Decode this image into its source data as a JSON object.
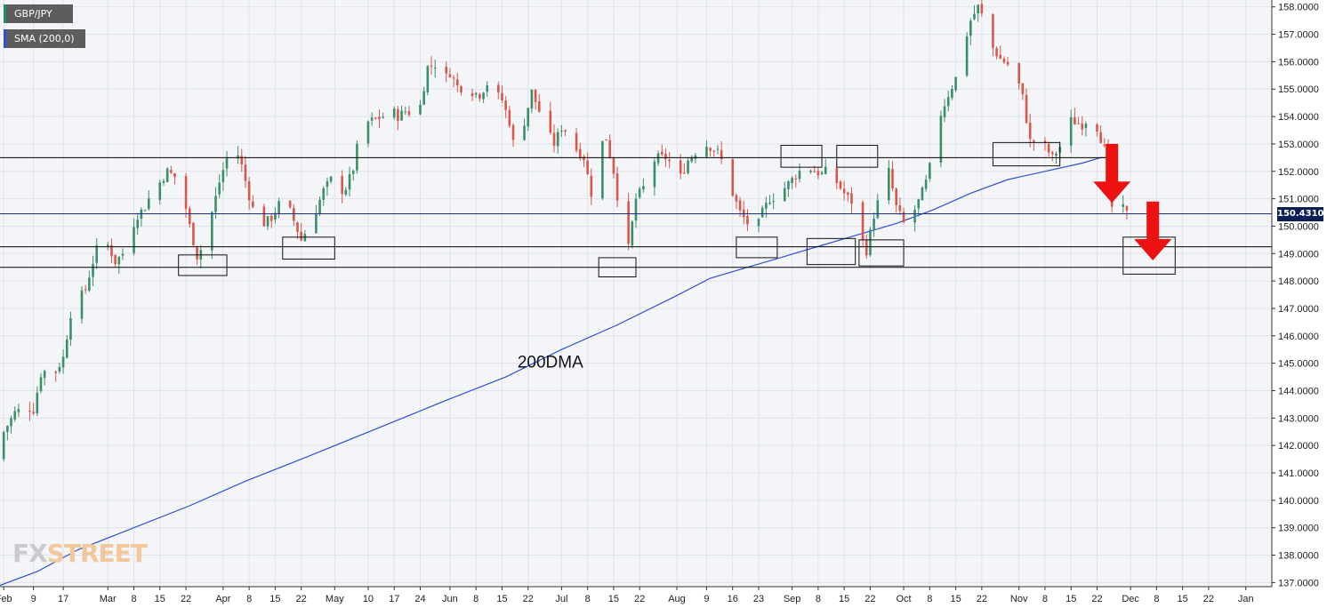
{
  "legend": {
    "ticker": "GBP/JPY",
    "indicator": "SMA (200,0)",
    "indicator_color": "#2f4fd6",
    "ticker_color": "#1b8f6a"
  },
  "last_price_label": "150.4310",
  "annotation_text": "200DMA",
  "watermark": {
    "part1": "FX",
    "part2": "STREET"
  },
  "colors": {
    "up": "#3a8f6a",
    "down": "#d8564a",
    "sma": "#2f4fd6",
    "arrow": "#ee1111",
    "grid": "#dfe3ea",
    "level_line": "#000000",
    "price_line": "#1e2f8a"
  },
  "chart_data": {
    "type": "candlestick",
    "title": "",
    "series_name": "GBP/JPY",
    "ylim": [
      136.85,
      158.25
    ],
    "y_ticks": [
      "137.0000",
      "138.0000",
      "139.0000",
      "140.0000",
      "141.0000",
      "142.0000",
      "143.0000",
      "144.0000",
      "145.0000",
      "146.0000",
      "147.0000",
      "148.0000",
      "149.0000",
      "150.0000",
      "151.0000",
      "152.0000",
      "153.0000",
      "154.0000",
      "155.0000",
      "156.0000",
      "157.0000",
      "158.0000"
    ],
    "x_ticks": [
      {
        "label": "Feb",
        "day": 0
      },
      {
        "label": "9",
        "day": 8
      },
      {
        "label": "17",
        "day": 16
      },
      {
        "label": "Mar",
        "day": 28
      },
      {
        "label": "8",
        "day": 35
      },
      {
        "label": "15",
        "day": 42
      },
      {
        "label": "22",
        "day": 49
      },
      {
        "label": "Apr",
        "day": 59
      },
      {
        "label": "8",
        "day": 66
      },
      {
        "label": "15",
        "day": 73
      },
      {
        "label": "22",
        "day": 80
      },
      {
        "label": "May",
        "day": 89
      },
      {
        "label": "10",
        "day": 98
      },
      {
        "label": "17",
        "day": 105
      },
      {
        "label": "24",
        "day": 112
      },
      {
        "label": "Jun",
        "day": 120
      },
      {
        "label": "8",
        "day": 127
      },
      {
        "label": "15",
        "day": 134
      },
      {
        "label": "22",
        "day": 141
      },
      {
        "label": "Jul",
        "day": 150
      },
      {
        "label": "8",
        "day": 157
      },
      {
        "label": "15",
        "day": 164
      },
      {
        "label": "22",
        "day": 171
      },
      {
        "label": "Aug",
        "day": 181
      },
      {
        "label": "9",
        "day": 189
      },
      {
        "label": "16",
        "day": 196
      },
      {
        "label": "23",
        "day": 203
      },
      {
        "label": "Sep",
        "day": 212
      },
      {
        "label": "8",
        "day": 219
      },
      {
        "label": "15",
        "day": 226
      },
      {
        "label": "22",
        "day": 233
      },
      {
        "label": "Oct",
        "day": 242
      },
      {
        "label": "8",
        "day": 249
      },
      {
        "label": "15",
        "day": 256
      },
      {
        "label": "22",
        "day": 263
      },
      {
        "label": "Nov",
        "day": 273
      },
      {
        "label": "8",
        "day": 280
      },
      {
        "label": "15",
        "day": 287
      },
      {
        "label": "22",
        "day": 294
      },
      {
        "label": "Dec",
        "day": 303
      },
      {
        "label": "8",
        "day": 310
      },
      {
        "label": "15",
        "day": 317
      },
      {
        "label": "22",
        "day": 324
      },
      {
        "label": "Jan",
        "day": 334
      }
    ],
    "x_range_days": [
      -1,
      341
    ],
    "close_path": [
      [
        -1,
        141.5
      ],
      [
        0,
        142.5
      ],
      [
        3,
        143.2
      ],
      [
        6,
        143.4
      ],
      [
        8,
        143.3
      ],
      [
        10,
        144.6
      ],
      [
        12,
        144.8
      ],
      [
        14,
        144.7
      ],
      [
        16,
        145.2
      ],
      [
        18,
        146.8
      ],
      [
        20,
        147.3
      ],
      [
        22,
        147.7
      ],
      [
        24,
        148.7
      ],
      [
        26,
        149.6
      ],
      [
        28,
        149.3
      ],
      [
        30,
        148.7
      ],
      [
        32,
        149.0
      ],
      [
        34,
        149.8
      ],
      [
        36,
        150.4
      ],
      [
        38,
        150.7
      ],
      [
        40,
        151.3
      ],
      [
        42,
        151.6
      ],
      [
        44,
        152.0
      ],
      [
        46,
        151.8
      ],
      [
        48,
        151.3
      ],
      [
        50,
        150.0
      ],
      [
        52,
        148.9
      ],
      [
        54,
        149.4
      ],
      [
        56,
        150.5
      ],
      [
        58,
        151.6
      ],
      [
        60,
        152.5
      ],
      [
        62,
        153.0
      ],
      [
        64,
        152.2
      ],
      [
        66,
        151.1
      ],
      [
        68,
        150.2
      ],
      [
        70,
        150.1
      ],
      [
        72,
        150.3
      ],
      [
        74,
        150.8
      ],
      [
        76,
        150.9
      ],
      [
        78,
        150.2
      ],
      [
        80,
        149.5
      ],
      [
        82,
        150.0
      ],
      [
        84,
        150.6
      ],
      [
        86,
        151.3
      ],
      [
        88,
        151.7
      ],
      [
        90,
        151.2
      ],
      [
        92,
        151.4
      ],
      [
        94,
        152.1
      ],
      [
        96,
        153.6
      ],
      [
        98,
        153.8
      ],
      [
        100,
        153.9
      ],
      [
        102,
        154.0
      ],
      [
        104,
        154.3
      ],
      [
        106,
        154.0
      ],
      [
        108,
        154.2
      ],
      [
        110,
        154.1
      ],
      [
        112,
        154.4
      ],
      [
        114,
        155.8
      ],
      [
        116,
        155.9
      ],
      [
        118,
        155.3
      ],
      [
        120,
        155.6
      ],
      [
        122,
        155.1
      ],
      [
        124,
        155.0
      ],
      [
        126,
        154.9
      ],
      [
        128,
        154.8
      ],
      [
        130,
        155.2
      ],
      [
        132,
        154.9
      ],
      [
        134,
        154.6
      ],
      [
        136,
        153.8
      ],
      [
        138,
        152.3
      ],
      [
        140,
        153.8
      ],
      [
        142,
        154.9
      ],
      [
        144,
        154.2
      ],
      [
        146,
        153.5
      ],
      [
        148,
        153.0
      ],
      [
        150,
        153.6
      ],
      [
        152,
        153.4
      ],
      [
        154,
        152.8
      ],
      [
        156,
        152.5
      ],
      [
        158,
        151.2
      ],
      [
        160,
        152.9
      ],
      [
        162,
        153.2
      ],
      [
        164,
        152.0
      ],
      [
        166,
        150.2
      ],
      [
        168,
        149.2
      ],
      [
        170,
        151.0
      ],
      [
        172,
        151.4
      ],
      [
        174,
        152.3
      ],
      [
        176,
        152.5
      ],
      [
        178,
        152.5
      ],
      [
        180,
        152.2
      ],
      [
        182,
        151.8
      ],
      [
        184,
        152.4
      ],
      [
        186,
        152.7
      ],
      [
        188,
        153.0
      ],
      [
        190,
        152.9
      ],
      [
        192,
        152.7
      ],
      [
        194,
        152.1
      ],
      [
        196,
        151.2
      ],
      [
        198,
        150.5
      ],
      [
        200,
        150.1
      ],
      [
        202,
        149.7
      ],
      [
        204,
        150.5
      ],
      [
        206,
        151.0
      ],
      [
        208,
        151.1
      ],
      [
        210,
        151.4
      ],
      [
        212,
        151.7
      ],
      [
        214,
        152.0
      ],
      [
        216,
        152.2
      ],
      [
        218,
        152.0
      ],
      [
        220,
        151.9
      ],
      [
        222,
        152.1
      ],
      [
        224,
        151.6
      ],
      [
        226,
        151.2
      ],
      [
        228,
        150.9
      ],
      [
        230,
        149.8
      ],
      [
        232,
        149.1
      ],
      [
        234,
        150.4
      ],
      [
        236,
        151.3
      ],
      [
        238,
        152.0
      ],
      [
        240,
        150.7
      ],
      [
        242,
        150.1
      ],
      [
        244,
        150.3
      ],
      [
        246,
        150.9
      ],
      [
        248,
        151.6
      ],
      [
        250,
        152.7
      ],
      [
        252,
        154.1
      ],
      [
        254,
        154.8
      ],
      [
        256,
        155.4
      ],
      [
        258,
        156.5
      ],
      [
        260,
        157.5
      ],
      [
        262,
        158.0
      ],
      [
        264,
        157.4
      ],
      [
        266,
        156.5
      ],
      [
        268,
        156.1
      ],
      [
        270,
        155.9
      ],
      [
        272,
        155.6
      ],
      [
        274,
        154.7
      ],
      [
        276,
        153.1
      ],
      [
        278,
        153.1
      ],
      [
        280,
        152.9
      ],
      [
        282,
        152.5
      ],
      [
        284,
        152.9
      ],
      [
        286,
        153.9
      ],
      [
        288,
        153.8
      ],
      [
        290,
        153.7
      ],
      [
        292,
        154.0
      ],
      [
        294,
        153.6
      ],
      [
        296,
        152.8
      ],
      [
        298,
        150.7
      ],
      [
        300,
        150.8
      ],
      [
        302,
        150.45
      ]
    ],
    "sma_200": [
      [
        -1,
        136.9
      ],
      [
        9,
        137.4
      ],
      [
        20,
        138.2
      ],
      [
        35,
        139.0
      ],
      [
        50,
        139.8
      ],
      [
        65,
        140.7
      ],
      [
        80,
        141.5
      ],
      [
        100,
        142.6
      ],
      [
        120,
        143.7
      ],
      [
        135,
        144.5
      ],
      [
        150,
        145.5
      ],
      [
        165,
        146.4
      ],
      [
        180,
        147.4
      ],
      [
        190,
        148.1
      ],
      [
        200,
        148.5
      ],
      [
        210,
        148.9
      ],
      [
        220,
        149.3
      ],
      [
        230,
        149.7
      ],
      [
        240,
        150.1
      ],
      [
        250,
        150.6
      ],
      [
        260,
        151.2
      ],
      [
        270,
        151.7
      ],
      [
        280,
        152.0
      ],
      [
        290,
        152.3
      ],
      [
        295,
        152.5
      ],
      [
        298,
        152.5
      ]
    ],
    "horizontal_levels": [
      152.5,
      150.45,
      149.25,
      148.5
    ],
    "boxes": [
      {
        "d0": 47,
        "d1": 60,
        "y0": 148.2,
        "y1": 148.95
      },
      {
        "d0": 75,
        "d1": 89,
        "y0": 148.8,
        "y1": 149.6
      },
      {
        "d0": 160,
        "d1": 170,
        "y0": 148.15,
        "y1": 148.85
      },
      {
        "d0": 197,
        "d1": 208,
        "y0": 148.85,
        "y1": 149.6
      },
      {
        "d0": 209,
        "d1": 220,
        "y0": 152.15,
        "y1": 152.95
      },
      {
        "d0": 216,
        "d1": 229,
        "y0": 148.6,
        "y1": 149.55
      },
      {
        "d0": 224,
        "d1": 235,
        "y0": 152.15,
        "y1": 152.95
      },
      {
        "d0": 230,
        "d1": 242,
        "y0": 148.55,
        "y1": 149.5
      },
      {
        "d0": 266,
        "d1": 284,
        "y0": 152.2,
        "y1": 153.05
      },
      {
        "d0": 301,
        "d1": 315,
        "y0": 148.25,
        "y1": 149.6
      }
    ],
    "arrows": [
      {
        "day": 298,
        "top": 153.0,
        "tip": 150.85
      },
      {
        "day": 309,
        "top": 150.9,
        "tip": 148.75
      }
    ],
    "last_price": 150.431,
    "annotation": {
      "day": 147,
      "price": 144.85
    }
  }
}
